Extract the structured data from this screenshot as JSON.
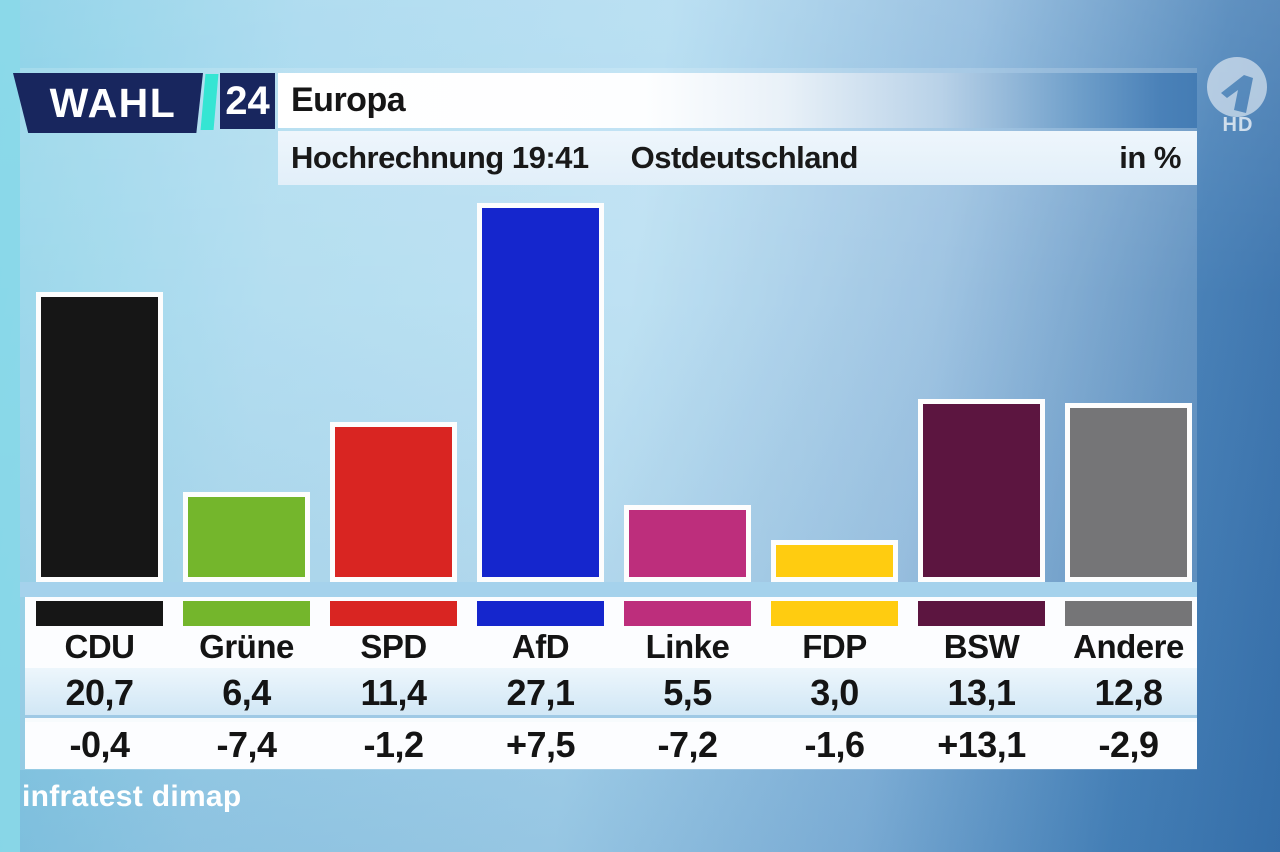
{
  "brand": {
    "wahl": "WAHL",
    "year": "24",
    "channel_hd": "HD"
  },
  "header": {
    "title": "Europa",
    "subtitle": "Hochrechnung 19:41",
    "region": "Ostdeutschland",
    "unit": "in %"
  },
  "source": "infratest dimap",
  "colors": {
    "navy": "#18265e",
    "cyan": "#35e5d3",
    "baseline_band": "#a5d2ec",
    "values_row_line": "#9fc9e5",
    "text_dark": "#141414"
  },
  "chart_data": {
    "type": "bar",
    "title": "Europa – Hochrechnung 19:41 – Ostdeutschland",
    "ylabel": "in %",
    "ylim": [
      0,
      28.5
    ],
    "grid": false,
    "legend": "none",
    "categories": [
      "CDU",
      "Grüne",
      "SPD",
      "AfD",
      "Linke",
      "FDP",
      "BSW",
      "Andere"
    ],
    "values": [
      20.7,
      6.4,
      11.4,
      27.1,
      5.5,
      3.0,
      13.1,
      12.8
    ],
    "value_labels": [
      "20,7",
      "6,4",
      "11,4",
      "27,1",
      "5,5",
      "3,0",
      "13,1",
      "12,8"
    ],
    "changes": [
      "-0,4",
      "-7,4",
      "-1,2",
      "+7,5",
      "-7,2",
      "-1,6",
      "+13,1",
      "-2,9"
    ],
    "bar_colors": [
      "#161616",
      "#74b62c",
      "#d92522",
      "#1526cd",
      "#bd2e7c",
      "#ffcc10",
      "#5c1540",
      "#757577"
    ]
  }
}
